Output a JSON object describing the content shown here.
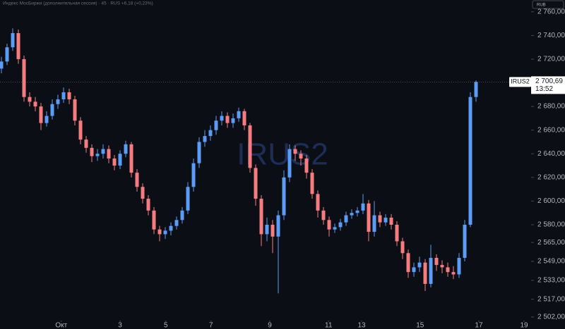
{
  "chart_data": {
    "type": "candlestick",
    "title": "Индекс МосБиржи (дополнительная сессия) · 45 · RUS  +6,18 (+0,23%)",
    "currency": "RUB",
    "watermark": "IRUS2",
    "up_color": "#5b9cf6",
    "down_color": "#f77c80",
    "open": [
      2712,
      2718,
      2730,
      2742,
      2720,
      2688,
      2684,
      2680,
      2666,
      2672,
      2682,
      2686,
      2692,
      2686,
      2668,
      2652,
      2645,
      2638,
      2640,
      2644,
      2636,
      2630,
      2640,
      2648,
      2624,
      2612,
      2602,
      2592,
      2576,
      2572,
      2575,
      2579,
      2584,
      2592,
      2612,
      2632,
      2650,
      2655,
      2660,
      2668,
      2672,
      2666,
      2670,
      2676,
      2664,
      2628,
      2602,
      2572,
      2580,
      2570,
      2588,
      2620,
      2644,
      2640,
      2636,
      2624,
      2606,
      2592,
      2584,
      2576,
      2578,
      2582,
      2588,
      2590,
      2592,
      2598,
      2574,
      2588,
      2582,
      2586,
      2580,
      2566,
      2556,
      2540,
      2544,
      2548,
      2530,
      2552,
      2546,
      2544,
      2540,
      2538,
      2552,
      2580,
      2688
    ],
    "high": [
      2722,
      2733,
      2746,
      2745,
      2723,
      2692,
      2688,
      2683,
      2676,
      2686,
      2690,
      2696,
      2695,
      2689,
      2671,
      2655,
      2648,
      2644,
      2648,
      2647,
      2639,
      2643,
      2651,
      2650,
      2627,
      2615,
      2605,
      2595,
      2579,
      2578,
      2582,
      2587,
      2595,
      2616,
      2636,
      2654,
      2660,
      2664,
      2672,
      2676,
      2675,
      2674,
      2679,
      2678,
      2666,
      2631,
      2605,
      2586,
      2584,
      2592,
      2626,
      2648,
      2647,
      2643,
      2639,
      2627,
      2609,
      2595,
      2587,
      2581,
      2585,
      2591,
      2593,
      2595,
      2606,
      2601,
      2600,
      2591,
      2589,
      2589,
      2583,
      2569,
      2559,
      2548,
      2553,
      2551,
      2563,
      2555,
      2550,
      2548,
      2545,
      2556,
      2584,
      2692,
      2702
    ],
    "low": [
      2708,
      2715,
      2727,
      2716,
      2684,
      2680,
      2676,
      2660,
      2663,
      2669,
      2678,
      2683,
      2682,
      2664,
      2648,
      2641,
      2633,
      2634,
      2636,
      2632,
      2626,
      2627,
      2637,
      2620,
      2608,
      2598,
      2588,
      2572,
      2566,
      2568,
      2571,
      2576,
      2581,
      2589,
      2608,
      2628,
      2646,
      2651,
      2656,
      2664,
      2662,
      2662,
      2667,
      2660,
      2624,
      2596,
      2562,
      2566,
      2556,
      2522,
      2584,
      2616,
      2634,
      2630,
      2619,
      2602,
      2586,
      2580,
      2570,
      2573,
      2575,
      2579,
      2585,
      2587,
      2589,
      2566,
      2570,
      2578,
      2579,
      2576,
      2562,
      2551,
      2535,
      2536,
      2540,
      2524,
      2527,
      2541,
      2539,
      2536,
      2534,
      2535,
      2549,
      2578,
      2684
    ],
    "close": [
      2718,
      2730,
      2742,
      2720,
      2688,
      2684,
      2680,
      2666,
      2672,
      2682,
      2686,
      2692,
      2686,
      2668,
      2652,
      2645,
      2638,
      2640,
      2644,
      2636,
      2630,
      2640,
      2648,
      2624,
      2612,
      2602,
      2592,
      2576,
      2572,
      2575,
      2579,
      2584,
      2592,
      2612,
      2632,
      2650,
      2655,
      2660,
      2668,
      2672,
      2666,
      2670,
      2676,
      2664,
      2628,
      2602,
      2572,
      2580,
      2570,
      2588,
      2620,
      2644,
      2640,
      2636,
      2624,
      2606,
      2592,
      2584,
      2576,
      2578,
      2582,
      2588,
      2590,
      2592,
      2598,
      2574,
      2588,
      2582,
      2586,
      2580,
      2566,
      2556,
      2540,
      2544,
      2548,
      2530,
      2552,
      2546,
      2544,
      2540,
      2538,
      2552,
      2580,
      2688,
      2700.69
    ],
    "xlim": [
      -0.25,
      93.5
    ],
    "xticks": [
      {
        "value": 10.6,
        "label": "Окт"
      },
      {
        "value": 21,
        "label": "3"
      },
      {
        "value": 29.1,
        "label": "5"
      },
      {
        "value": 37.1,
        "label": "7"
      },
      {
        "value": 47.5,
        "label": "9"
      },
      {
        "value": 57.9,
        "label": "11"
      },
      {
        "value": 63.75,
        "label": "13"
      },
      {
        "value": 74.1,
        "label": "15"
      },
      {
        "value": 84.5,
        "label": "17"
      },
      {
        "value": 92.5,
        "label": "19"
      }
    ],
    "ylim": [
      2499,
      2770
    ],
    "yticks": [
      {
        "value": 2760,
        "label": "2 760,00"
      },
      {
        "value": 2740,
        "label": "2 740,00"
      },
      {
        "value": 2720,
        "label": "2 720,00"
      },
      {
        "value": 2680,
        "label": "2 680,00"
      },
      {
        "value": 2660,
        "label": "2 660,00"
      },
      {
        "value": 2640,
        "label": "2 640,00"
      },
      {
        "value": 2620,
        "label": "2 620,00"
      },
      {
        "value": 2600,
        "label": "2 600,00"
      },
      {
        "value": 2580,
        "label": "2 580,00"
      },
      {
        "value": 2565,
        "label": "2 565,00"
      },
      {
        "value": 2549,
        "label": "2 549,00"
      },
      {
        "value": 2533,
        "label": "2 533,00"
      },
      {
        "value": 2517,
        "label": "2 517,00"
      },
      {
        "value": 2502,
        "label": "2 502,00"
      }
    ],
    "last_price": {
      "symbol": "IRUS2",
      "price": {
        "value": 2700.69,
        "label": "2 700,69"
      },
      "time": "13:52"
    }
  }
}
